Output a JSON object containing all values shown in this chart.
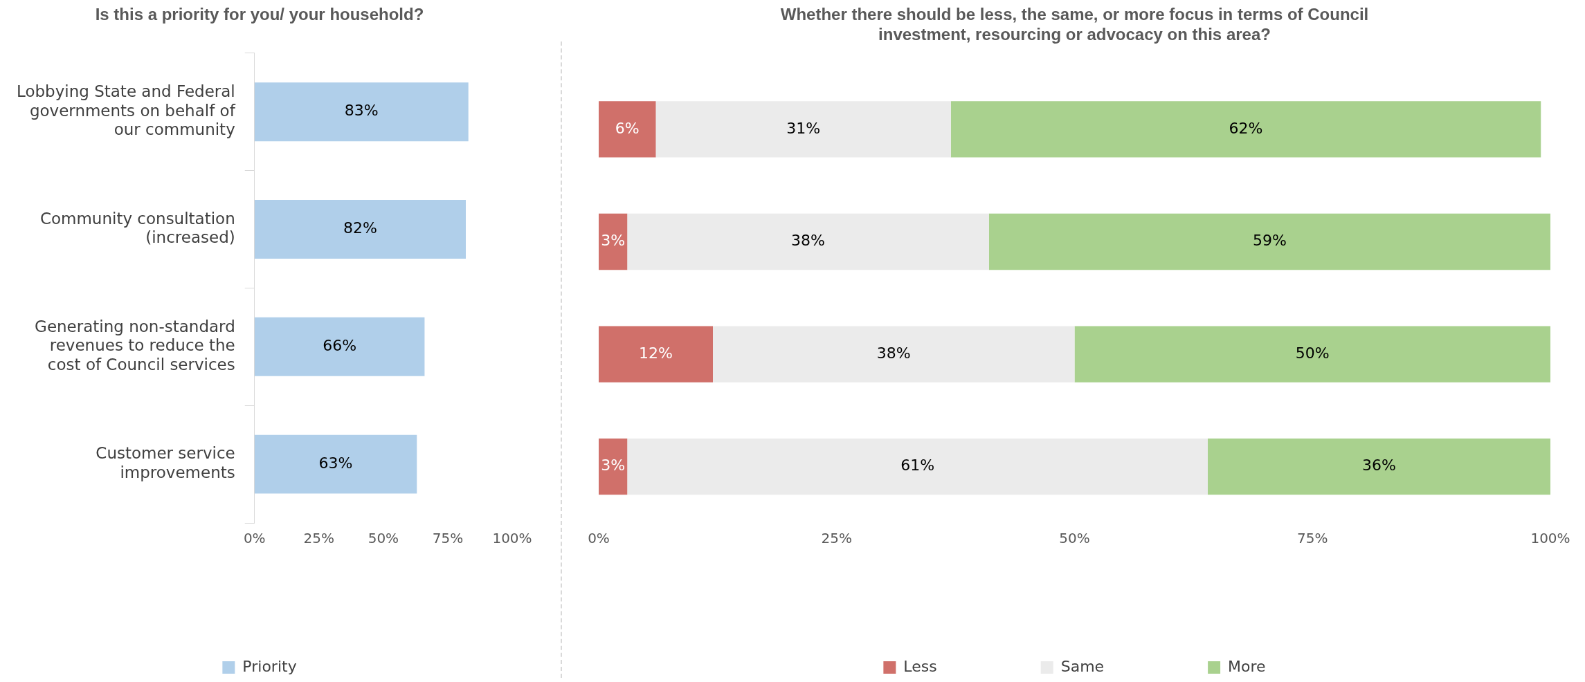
{
  "chart_data": [
    {
      "type": "bar",
      "orientation": "horizontal",
      "title": "Is this a priority for you/ your household?",
      "categories": [
        "Lobbying State and Federal governments on behalf of our community",
        "Community consultation (increased)",
        "Generating non-standard revenues to reduce the cost of Council services",
        "Customer service improvements"
      ],
      "series": [
        {
          "name": "Priority",
          "color": "#b0cfea",
          "values": [
            83,
            82,
            66,
            63
          ],
          "value_labels": [
            "83%",
            "82%",
            "66%",
            "63%"
          ]
        }
      ],
      "xlim": [
        0,
        100
      ],
      "xticks": [
        {
          "value": 0,
          "label": "0%"
        },
        {
          "value": 25,
          "label": "25%"
        },
        {
          "value": 50,
          "label": "50%"
        },
        {
          "value": 75,
          "label": "75%"
        },
        {
          "value": 100,
          "label": "100%"
        }
      ],
      "grid": false,
      "legend": "bottom"
    },
    {
      "type": "bar",
      "orientation": "horizontal",
      "stacked": true,
      "title": "Whether there should be less, the same, or more focus in terms of Council investment, resourcing or advocacy on this area?",
      "categories": [
        null,
        null,
        null,
        null
      ],
      "series": [
        {
          "name": "Less",
          "color": "#d0706a",
          "values": [
            6,
            3,
            12,
            3
          ],
          "value_labels": [
            "6%",
            "3%",
            "12%",
            "3%"
          ]
        },
        {
          "name": "Same",
          "color": "#ebebeb",
          "values": [
            31,
            38,
            38,
            61
          ],
          "value_labels": [
            "31%",
            "38%",
            "38%",
            "61%"
          ]
        },
        {
          "name": "More",
          "color": "#a9d18e",
          "values": [
            62,
            59,
            50,
            36
          ],
          "value_labels": [
            "62%",
            "59%",
            "50%",
            "36%"
          ]
        }
      ],
      "xlim": [
        0,
        100
      ],
      "xticks": [
        {
          "value": 0,
          "label": "0%"
        },
        {
          "value": 25,
          "label": "25%"
        },
        {
          "value": 50,
          "label": "50%"
        },
        {
          "value": 75,
          "label": "75%"
        },
        {
          "value": 100,
          "label": "100%"
        }
      ],
      "grid": false,
      "legend": "bottom"
    }
  ]
}
